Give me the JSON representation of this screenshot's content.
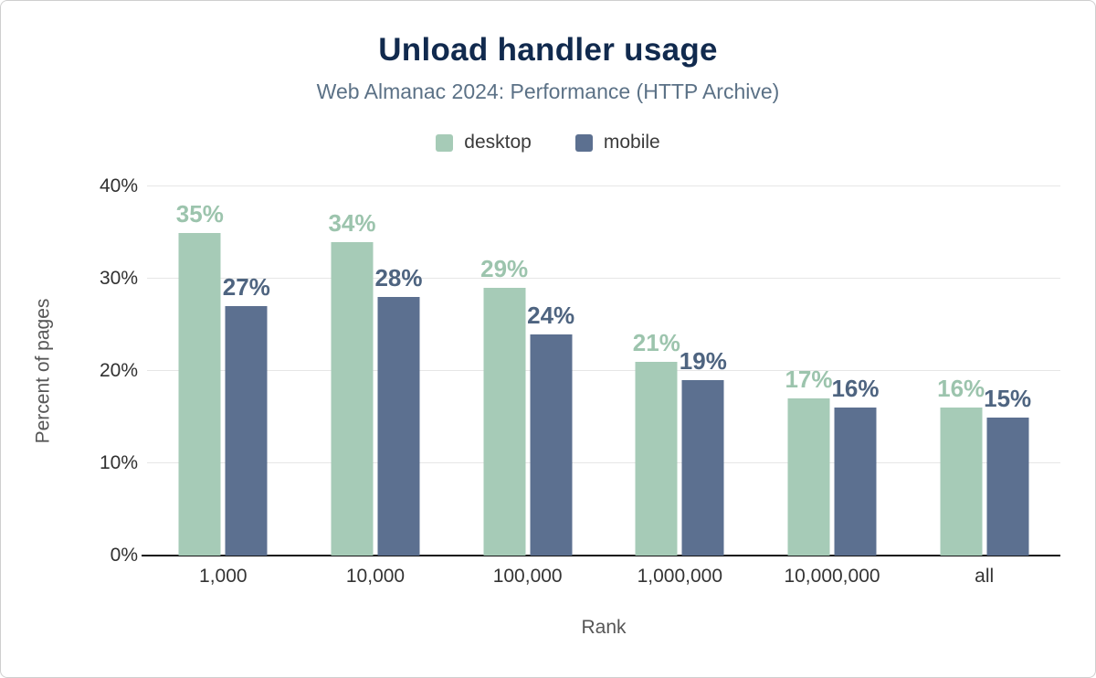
{
  "chart_data": {
    "type": "bar",
    "title": "Unload handler usage",
    "subtitle": "Web Almanac 2024: Performance (HTTP Archive)",
    "xlabel": "Rank",
    "ylabel": "Percent of pages",
    "categories": [
      "1,000",
      "10,000",
      "100,000",
      "1,000,000",
      "10,000,000",
      "all"
    ],
    "series": [
      {
        "name": "desktop",
        "color": "#a6cbb7",
        "label_color": "#9cc4ad",
        "values": [
          35,
          34,
          29,
          21,
          17,
          16
        ]
      },
      {
        "name": "mobile",
        "color": "#5c7090",
        "label_color": "#4e6480",
        "values": [
          27,
          28,
          24,
          19,
          16,
          15
        ]
      }
    ],
    "ylim": [
      0,
      40
    ],
    "yticks": [
      "0%",
      "10%",
      "20%",
      "30%",
      "40%"
    ],
    "value_suffix": "%",
    "grid": "horizontal",
    "legend_position": "top",
    "colors": {
      "title": "#112a4e",
      "subtitle": "#5b7186",
      "axis_text": "#343434",
      "axis_title": "#565656",
      "gridline": "#e6e6e6",
      "axis_line": "#141414",
      "background": "#ffffff",
      "border": "#cfcfcf"
    }
  }
}
